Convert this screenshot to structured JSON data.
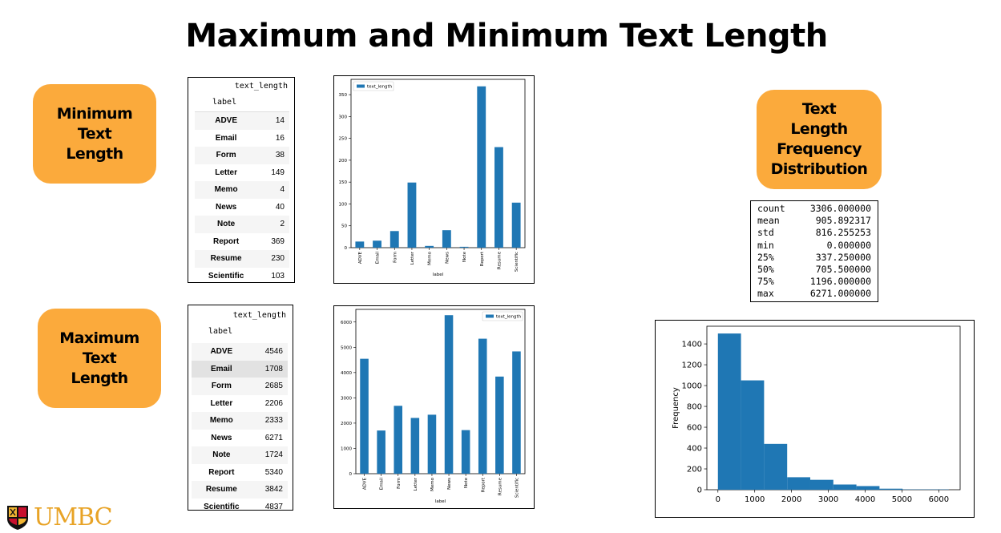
{
  "slide": {
    "title": "Maximum and Minimum Text Length",
    "pills": {
      "minimum": [
        "Minimum",
        "Text",
        "Length"
      ],
      "maximum": [
        "Maximum",
        "Text",
        "Length"
      ],
      "frequency": [
        "Text",
        "Length",
        "Frequency",
        "Distribution"
      ]
    },
    "logo_text": "UMBC"
  },
  "min_table": {
    "column": "text_length",
    "index_label": "label",
    "rows": [
      {
        "label": "ADVE",
        "value": "14"
      },
      {
        "label": "Email",
        "value": "16"
      },
      {
        "label": "Form",
        "value": "38"
      },
      {
        "label": "Letter",
        "value": "149"
      },
      {
        "label": "Memo",
        "value": "4"
      },
      {
        "label": "News",
        "value": "40"
      },
      {
        "label": "Note",
        "value": "2"
      },
      {
        "label": "Report",
        "value": "369"
      },
      {
        "label": "Resume",
        "value": "230"
      },
      {
        "label": "Scientific",
        "value": "103"
      }
    ]
  },
  "max_table": {
    "column": "text_length",
    "index_label": "label",
    "rows": [
      {
        "label": "ADVE",
        "value": "4546"
      },
      {
        "label": "Email",
        "value": "1708"
      },
      {
        "label": "Form",
        "value": "2685"
      },
      {
        "label": "Letter",
        "value": "2206"
      },
      {
        "label": "Memo",
        "value": "2333"
      },
      {
        "label": "News",
        "value": "6271"
      },
      {
        "label": "Note",
        "value": "1724"
      },
      {
        "label": "Report",
        "value": "5340"
      },
      {
        "label": "Resume",
        "value": "3842"
      },
      {
        "label": "Scientific",
        "value": "4837"
      }
    ]
  },
  "stats": [
    {
      "key": "count",
      "value": "3306.000000"
    },
    {
      "key": "mean",
      "value": "905.892317"
    },
    {
      "key": "std",
      "value": "816.255253"
    },
    {
      "key": "min",
      "value": "0.000000"
    },
    {
      "key": "25%",
      "value": "337.250000"
    },
    {
      "key": "50%",
      "value": "705.500000"
    },
    {
      "key": "75%",
      "value": "1196.000000"
    },
    {
      "key": "max",
      "value": "6271.000000"
    }
  ],
  "chart_data": [
    {
      "type": "bar",
      "id": "min_chart",
      "categories": [
        "ADVE",
        "Email",
        "Form",
        "Letter",
        "Memo",
        "News",
        "Note",
        "Report",
        "Resume",
        "Scientific"
      ],
      "series": [
        {
          "name": "text_length",
          "values": [
            14,
            16,
            38,
            149,
            4,
            40,
            2,
            369,
            230,
            103
          ]
        }
      ],
      "xlabel": "label",
      "ylabel": "",
      "ylim": [
        0,
        385
      ],
      "yticks": [
        0,
        50,
        100,
        150,
        200,
        250,
        300,
        350
      ],
      "legend": "top-left",
      "color": "#1f77b4"
    },
    {
      "type": "bar",
      "id": "max_chart",
      "categories": [
        "ADVE",
        "Email",
        "Form",
        "Letter",
        "Memo",
        "News",
        "Note",
        "Report",
        "Resume",
        "Scientific"
      ],
      "series": [
        {
          "name": "text_length",
          "values": [
            4546,
            1708,
            2685,
            2206,
            2333,
            6271,
            1724,
            5340,
            3842,
            4837
          ]
        }
      ],
      "xlabel": "label",
      "ylabel": "",
      "ylim": [
        0,
        6500
      ],
      "yticks": [
        0,
        1000,
        2000,
        3000,
        4000,
        5000,
        6000
      ],
      "legend": "top-right",
      "color": "#1f77b4"
    },
    {
      "type": "bar",
      "id": "hist_chart",
      "subtype": "histogram",
      "bin_edges": [
        0,
        627.1,
        1254.2,
        1881.3,
        2508.4,
        3135.5,
        3762.6,
        4389.7,
        5016.8,
        5643.9,
        6271
      ],
      "values": [
        1500,
        1050,
        440,
        120,
        95,
        50,
        35,
        10,
        3,
        3
      ],
      "xlabel": "",
      "ylabel": "Frequency",
      "xlim": [
        -300,
        6580
      ],
      "ylim": [
        0,
        1570
      ],
      "xticks": [
        0,
        1000,
        2000,
        3000,
        4000,
        5000,
        6000
      ],
      "yticks": [
        0,
        200,
        400,
        600,
        800,
        1000,
        1200,
        1400
      ],
      "color": "#1f77b4"
    }
  ]
}
